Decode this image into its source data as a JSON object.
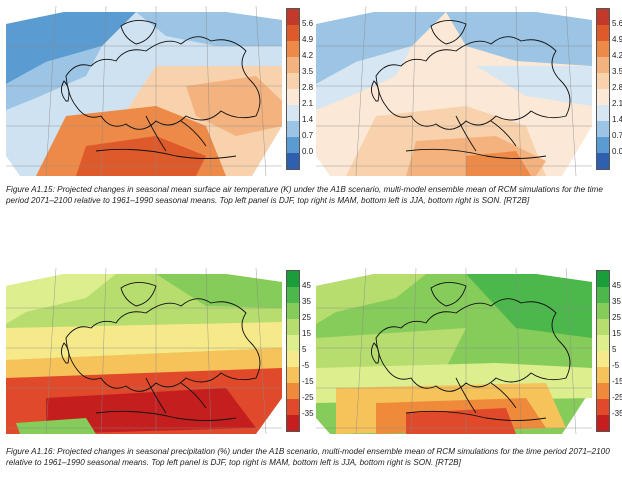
{
  "figures": [
    {
      "id": "A1.15",
      "caption": "Figure A1.15: Projected changes in seasonal mean surface air temperature (K) under the A1B scenario, multi-model ensemble mean of RCM simulations for the time period 2071–2100 relative to 1961–1990 seasonal means. Top left panel is DJF, top right is MAM, bottom left is JJA, bottom right is SON. [RT2B]",
      "colorbar": {
        "ticks": [
          "5.6",
          "4.9",
          "4.2",
          "3.5",
          "2.8",
          "2.1",
          "1.4",
          "0.7",
          "0.0"
        ],
        "colors": [
          "#c0392b",
          "#de5a2a",
          "#ee8a48",
          "#f4b27e",
          "#f8d2ad",
          "#fbe8d6",
          "#d6e6f2",
          "#9cc4e4",
          "#5a9bd2",
          "#2f5fae"
        ]
      }
    },
    {
      "id": "A1.16",
      "caption": "Figure A1.16: Projected changes in seasonal precipitation (%) under the A1B scenario, multi-model ensemble mean of RCM simulations for the time period 2071–2100 relative to 1961–1990 seasonal means. Top left panel is DJF, top right is MAM, bottom left is JJA, bottom right is SON. [RT2B]",
      "colorbar": {
        "ticks": [
          "45",
          "35",
          "25",
          "15",
          "5",
          "-5",
          "-15",
          "-25",
          "-35"
        ],
        "colors": [
          "#1a9e3c",
          "#4cb84c",
          "#86cc5a",
          "#b6dd6e",
          "#dcee8e",
          "#f6e98a",
          "#f6c25a",
          "#ee8a3a",
          "#e04a2a",
          "#c41e1e"
        ]
      }
    }
  ]
}
